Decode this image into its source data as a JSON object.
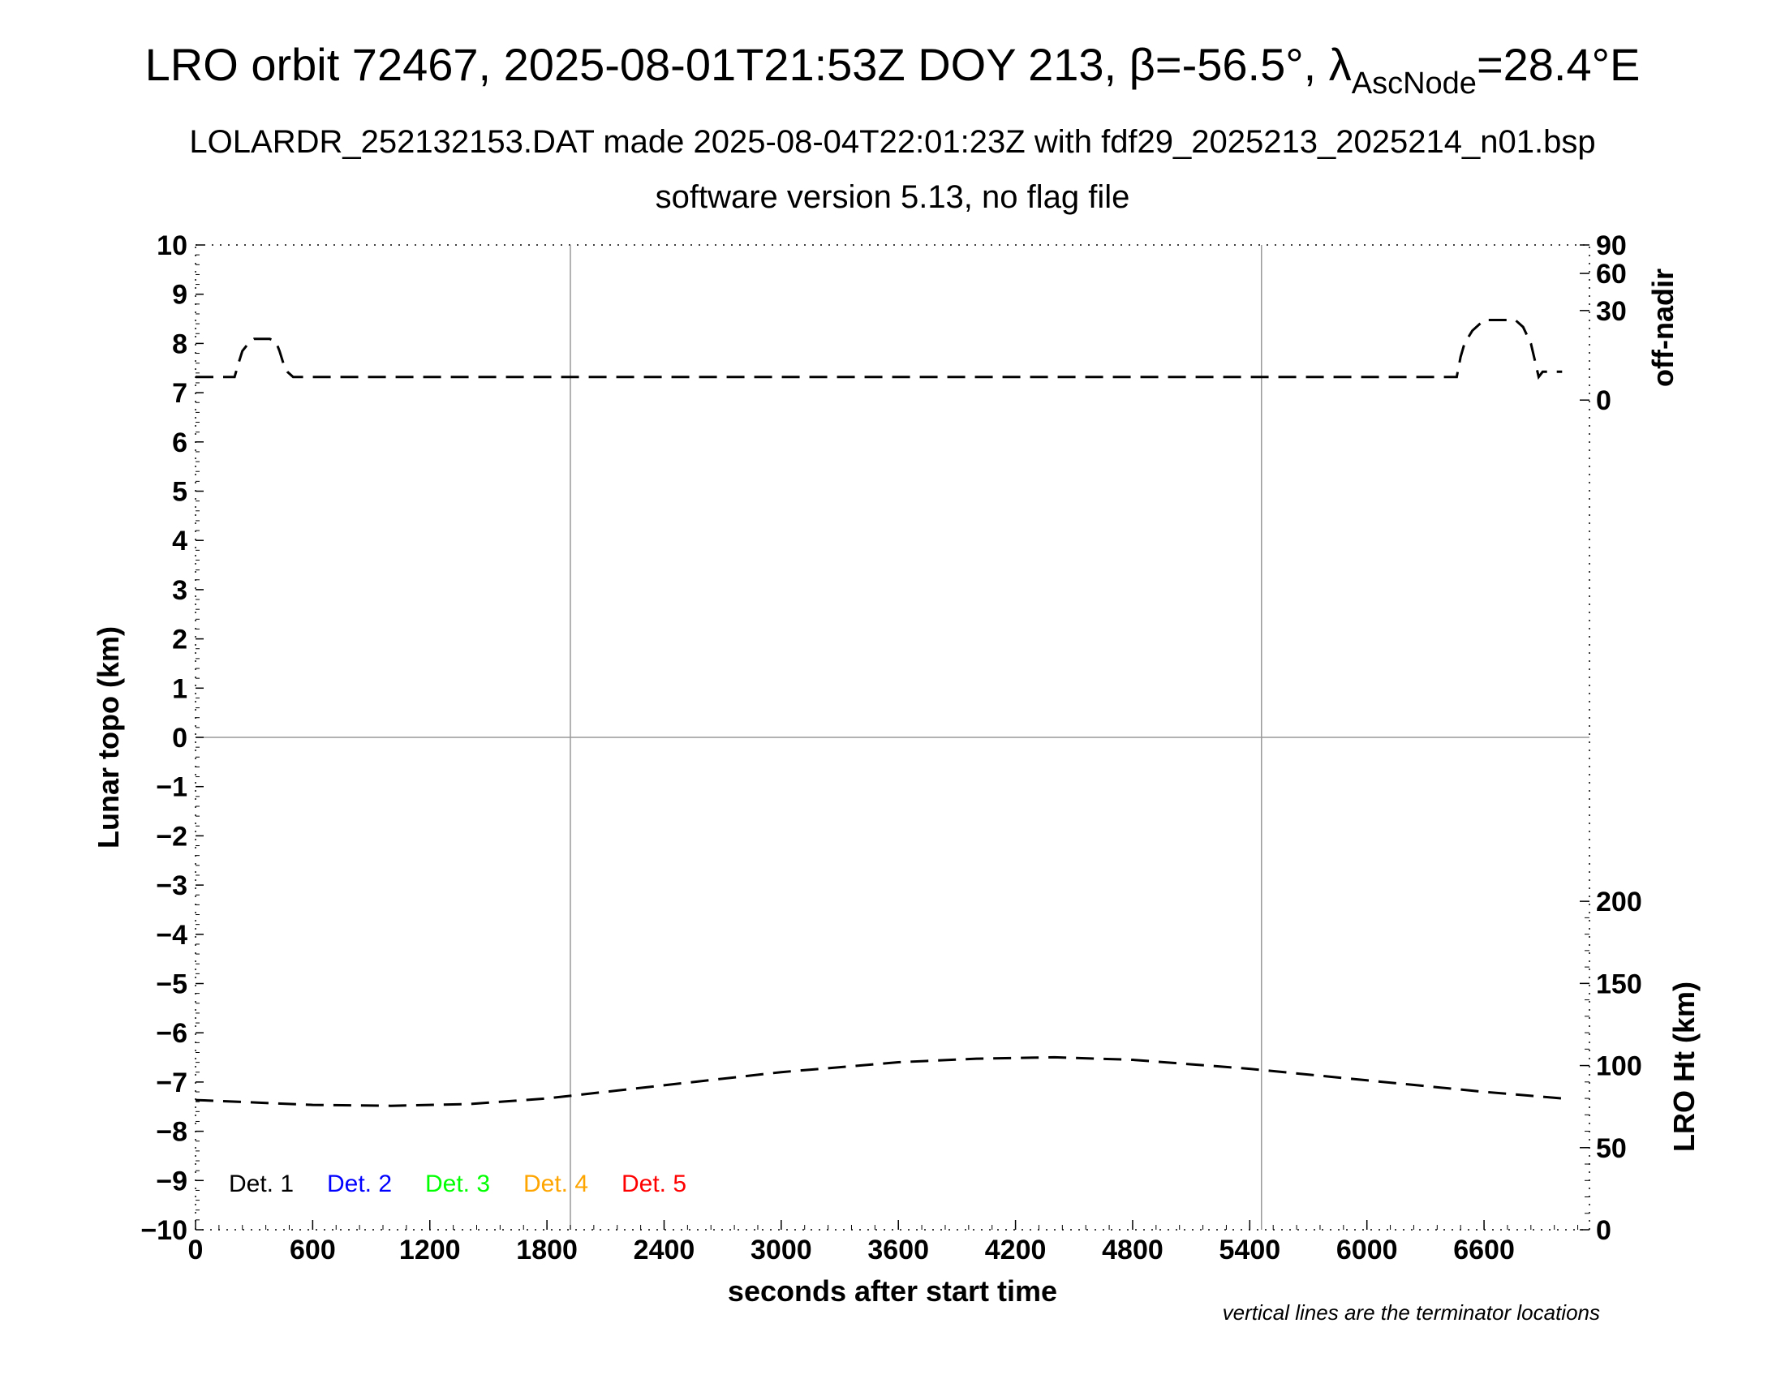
{
  "header": {
    "title_prefix": "LRO orbit 72467, 2025-08-01T21:53Z DOY 213, β=-56.5°, λ",
    "title_sub": "AscNode",
    "title_suffix": "=28.4°E",
    "subtitle1": "LOLARDR_252132153.DAT made 2025-08-04T22:01:23Z with fdf29_2025213_2025214_n01.bsp",
    "subtitle2": "software version 5.13, no flag file"
  },
  "footnote": "vertical lines are the terminator locations",
  "chart_data": {
    "type": "line",
    "xlabel": "seconds after start time",
    "ylabel_left": "Lunar topo (km)",
    "ylabel_right_top": "off-nadir",
    "ylabel_right_bottom": "LRO Ht (km)",
    "xlim": [
      0,
      7140
    ],
    "ylim": [
      -10,
      10
    ],
    "x_ticks": [
      "0",
      "600",
      "1200",
      "1800",
      "2400",
      "3000",
      "3600",
      "4200",
      "4800",
      "5400",
      "6000",
      "6600"
    ],
    "y_ticks": [
      "10",
      "9",
      "8",
      "7",
      "6",
      "5",
      "4",
      "3",
      "2",
      "1",
      "0",
      "−1",
      "−2",
      "−3",
      "−4",
      "−5",
      "−6",
      "−7",
      "−8",
      "−9",
      "−10"
    ],
    "right_top_ticks": [
      "90",
      "60",
      "30",
      "0"
    ],
    "right_bottom_ticks": [
      "200",
      "150",
      "100",
      "50",
      "0"
    ],
    "terminator_lines_x": [
      1920,
      5460
    ],
    "grid_y_zero": true,
    "legend_placement": "bottom-left",
    "legend": [
      {
        "label": "Det. 1",
        "color": "#000000"
      },
      {
        "label": "Det. 2",
        "color": "#0000ff"
      },
      {
        "label": "Det. 3",
        "color": "#00ff00"
      },
      {
        "label": "Det. 4",
        "color": "#ffa500"
      },
      {
        "label": "Det. 5",
        "color": "#ff0000"
      }
    ],
    "series": [
      {
        "axis": "off-nadir (deg)",
        "style": "dashed",
        "color": "#000000",
        "x": [
          0,
          200,
          220,
          240,
          280,
          300,
          350,
          380,
          410,
          430,
          450,
          470,
          500,
          1000,
          2000,
          3000,
          4000,
          5000,
          6000,
          6460,
          6480,
          6500,
          6540,
          6600,
          6700,
          6760,
          6800,
          6840,
          6860,
          6880,
          6900,
          7000
        ],
        "y": [
          2,
          2,
          5,
          9,
          13,
          14,
          14,
          14,
          13,
          9,
          5,
          3,
          2,
          2,
          2,
          2,
          2,
          2,
          2,
          2,
          7,
          12,
          18,
          24,
          24,
          24,
          20,
          12,
          6,
          2,
          3,
          3
        ]
      },
      {
        "axis": "LRO Ht (km)",
        "style": "dashed",
        "color": "#000000",
        "x": [
          0,
          600,
          1000,
          1400,
          1800,
          2400,
          3000,
          3600,
          4000,
          4400,
          4800,
          5400,
          6000,
          6600,
          7000
        ],
        "y": [
          79,
          76,
          75.5,
          76.5,
          80,
          88,
          96,
          102,
          104.2,
          105,
          103.5,
          98,
          91,
          84,
          80
        ]
      }
    ]
  }
}
